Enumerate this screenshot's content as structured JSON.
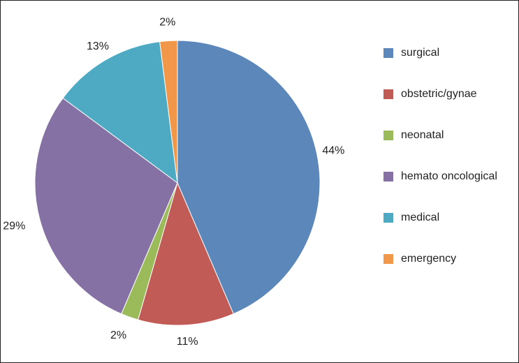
{
  "chart_data": {
    "type": "pie",
    "title": "",
    "slices": [
      {
        "label": "surgical",
        "value": 44,
        "display": "44%",
        "color": "#5B87BA"
      },
      {
        "label": "obstetric/gynae",
        "value": 11,
        "display": "11%",
        "color": "#C05B55"
      },
      {
        "label": "neonatal",
        "value": 2,
        "display": "2%",
        "color": "#9BBB5A"
      },
      {
        "label": "hemato oncological",
        "value": 29,
        "display": "29%",
        "color": "#8571A3"
      },
      {
        "label": "medical",
        "value": 13,
        "display": "13%",
        "color": "#4DAAC2"
      },
      {
        "label": "emergency",
        "value": 2,
        "display": "2%",
        "color": "#F0974A"
      }
    ],
    "start_angle": "top, clockwise",
    "legend_position": "right"
  }
}
